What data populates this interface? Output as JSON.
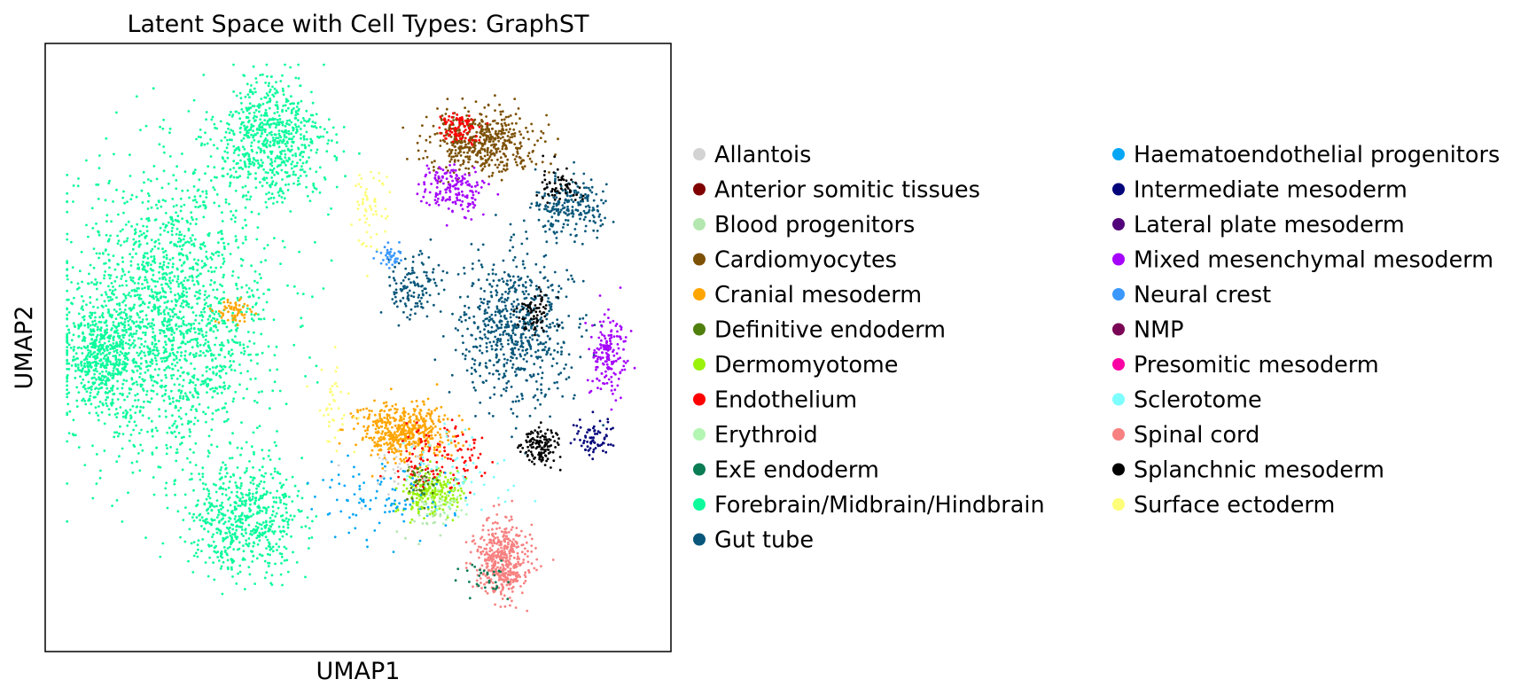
{
  "chart_data": {
    "type": "scatter",
    "title": "Latent Space with Cell Types: GraphST",
    "xlabel": "UMAP1",
    "ylabel": "UMAP2",
    "xlim": [
      0,
      10
    ],
    "ylim": [
      0,
      10
    ],
    "grid": false,
    "ticks": false,
    "legend_position": "right, two columns",
    "categories": [
      {
        "name": "Allantois",
        "color": "#d3d3d3"
      },
      {
        "name": "Anterior somitic tissues",
        "color": "#800000"
      },
      {
        "name": "Blood progenitors",
        "color": "#b4e7b0"
      },
      {
        "name": "Cardiomyocytes",
        "color": "#7d5106"
      },
      {
        "name": "Cranial mesoderm",
        "color": "#ffa500"
      },
      {
        "name": "Definitive endoderm",
        "color": "#4f7f0d"
      },
      {
        "name": "Dermomyotome",
        "color": "#9af20a"
      },
      {
        "name": "Endothelium",
        "color": "#ff0000"
      },
      {
        "name": "Erythroid",
        "color": "#b3f6b3"
      },
      {
        "name": "ExE endoderm",
        "color": "#0b7d55"
      },
      {
        "name": "Forebrain/Midbrain/Hindbrain",
        "color": "#0dfa9c"
      },
      {
        "name": "Gut tube",
        "color": "#09577a"
      },
      {
        "name": "Haematoendothelial progenitors",
        "color": "#05a7f5"
      },
      {
        "name": "Intermediate mesoderm",
        "color": "#03037a"
      },
      {
        "name": "Lateral plate mesoderm",
        "color": "#52057a"
      },
      {
        "name": "Mixed mesenchymal mesoderm",
        "color": "#a503fb"
      },
      {
        "name": "Neural crest",
        "color": "#3a98fc"
      },
      {
        "name": "NMP",
        "color": "#7a0555"
      },
      {
        "name": "Presomitic mesoderm",
        "color": "#f903a5"
      },
      {
        "name": "Sclerotome",
        "color": "#7efefe"
      },
      {
        "name": "Spinal cord",
        "color": "#f78181"
      },
      {
        "name": "Splanchnic mesoderm",
        "color": "#000000"
      },
      {
        "name": "Surface ectoderm",
        "color": "#fdfd79"
      }
    ],
    "clusters": [
      {
        "category": 10,
        "cx": 2.0,
        "cy": 5.5,
        "sx": 1.6,
        "sy": 2.4,
        "n": 1800
      },
      {
        "category": 10,
        "cx": 3.6,
        "cy": 8.4,
        "sx": 0.9,
        "sy": 1.0,
        "n": 700
      },
      {
        "category": 10,
        "cx": 0.9,
        "cy": 4.9,
        "sx": 0.55,
        "sy": 0.9,
        "n": 500
      },
      {
        "category": 10,
        "cx": 3.2,
        "cy": 2.2,
        "sx": 0.9,
        "sy": 0.9,
        "n": 600
      },
      {
        "category": 3,
        "cx": 7.0,
        "cy": 8.4,
        "sx": 0.9,
        "sy": 0.5,
        "n": 500
      },
      {
        "category": 11,
        "cx": 7.5,
        "cy": 5.3,
        "sx": 0.9,
        "sy": 1.2,
        "n": 650
      },
      {
        "category": 11,
        "cx": 8.4,
        "cy": 7.3,
        "sx": 0.6,
        "sy": 0.5,
        "n": 220
      },
      {
        "category": 11,
        "cx": 5.9,
        "cy": 6.0,
        "sx": 0.4,
        "sy": 0.5,
        "n": 120
      },
      {
        "category": 15,
        "cx": 6.5,
        "cy": 7.6,
        "sx": 0.5,
        "sy": 0.4,
        "n": 170
      },
      {
        "category": 15,
        "cx": 9.0,
        "cy": 4.9,
        "sx": 0.3,
        "sy": 0.7,
        "n": 170
      },
      {
        "category": 4,
        "cx": 5.7,
        "cy": 3.6,
        "sx": 0.75,
        "sy": 0.45,
        "n": 480
      },
      {
        "category": 4,
        "cx": 3.0,
        "cy": 5.6,
        "sx": 0.25,
        "sy": 0.25,
        "n": 60
      },
      {
        "category": 20,
        "cx": 7.3,
        "cy": 1.5,
        "sx": 0.45,
        "sy": 0.6,
        "n": 450
      },
      {
        "category": 6,
        "cx": 6.2,
        "cy": 2.6,
        "sx": 0.5,
        "sy": 0.35,
        "n": 220
      },
      {
        "category": 21,
        "cx": 7.9,
        "cy": 3.4,
        "sx": 0.3,
        "sy": 0.3,
        "n": 130
      },
      {
        "category": 21,
        "cx": 7.8,
        "cy": 5.6,
        "sx": 0.3,
        "sy": 0.3,
        "n": 70
      },
      {
        "category": 21,
        "cx": 8.2,
        "cy": 7.7,
        "sx": 0.4,
        "sy": 0.3,
        "n": 60
      },
      {
        "category": 7,
        "cx": 6.6,
        "cy": 8.6,
        "sx": 0.3,
        "sy": 0.25,
        "n": 90
      },
      {
        "category": 7,
        "cx": 6.3,
        "cy": 3.2,
        "sx": 0.8,
        "sy": 0.5,
        "n": 120
      },
      {
        "category": 13,
        "cx": 8.8,
        "cy": 3.5,
        "sx": 0.3,
        "sy": 0.3,
        "n": 70
      },
      {
        "category": 16,
        "cx": 5.5,
        "cy": 6.5,
        "sx": 0.2,
        "sy": 0.2,
        "n": 40
      },
      {
        "category": 12,
        "cx": 5.4,
        "cy": 2.5,
        "sx": 1.2,
        "sy": 0.6,
        "n": 100
      },
      {
        "category": 19,
        "cx": 6.5,
        "cy": 3.0,
        "sx": 0.8,
        "sy": 0.6,
        "n": 60
      },
      {
        "category": 22,
        "cx": 5.2,
        "cy": 7.3,
        "sx": 0.25,
        "sy": 0.8,
        "n": 60
      },
      {
        "category": 22,
        "cx": 4.6,
        "cy": 4.0,
        "sx": 0.3,
        "sy": 0.8,
        "n": 40
      },
      {
        "category": 5,
        "cx": 6.0,
        "cy": 2.8,
        "sx": 0.4,
        "sy": 0.3,
        "n": 40
      },
      {
        "category": 9,
        "cx": 7.0,
        "cy": 1.2,
        "sx": 0.4,
        "sy": 0.3,
        "n": 30
      },
      {
        "category": 0,
        "cx": 5.6,
        "cy": 3.0,
        "sx": 0.6,
        "sy": 0.4,
        "n": 30
      },
      {
        "category": 8,
        "cx": 6.4,
        "cy": 2.4,
        "sx": 0.5,
        "sy": 0.3,
        "n": 30
      },
      {
        "category": 2,
        "cx": 6.1,
        "cy": 2.2,
        "sx": 0.5,
        "sy": 0.3,
        "n": 25
      }
    ]
  }
}
